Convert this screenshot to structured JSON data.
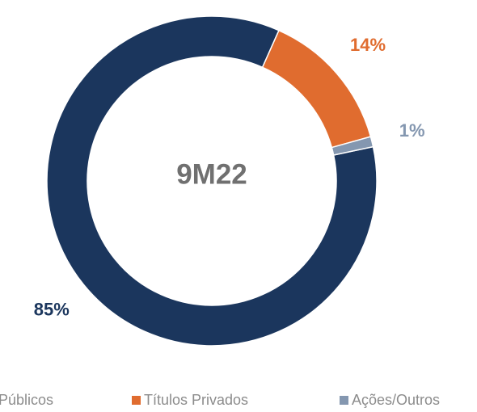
{
  "chart_data": {
    "type": "pie",
    "center_label": "9M22",
    "categories": [
      "Públicos",
      "Títulos Privados",
      "Ações/Outros"
    ],
    "values": [
      85,
      14,
      1
    ],
    "value_labels": [
      "85%",
      "14%",
      "1%"
    ],
    "colors": [
      "#1b365d",
      "#e06c2f",
      "#8497b0"
    ],
    "legend": "bottom"
  }
}
